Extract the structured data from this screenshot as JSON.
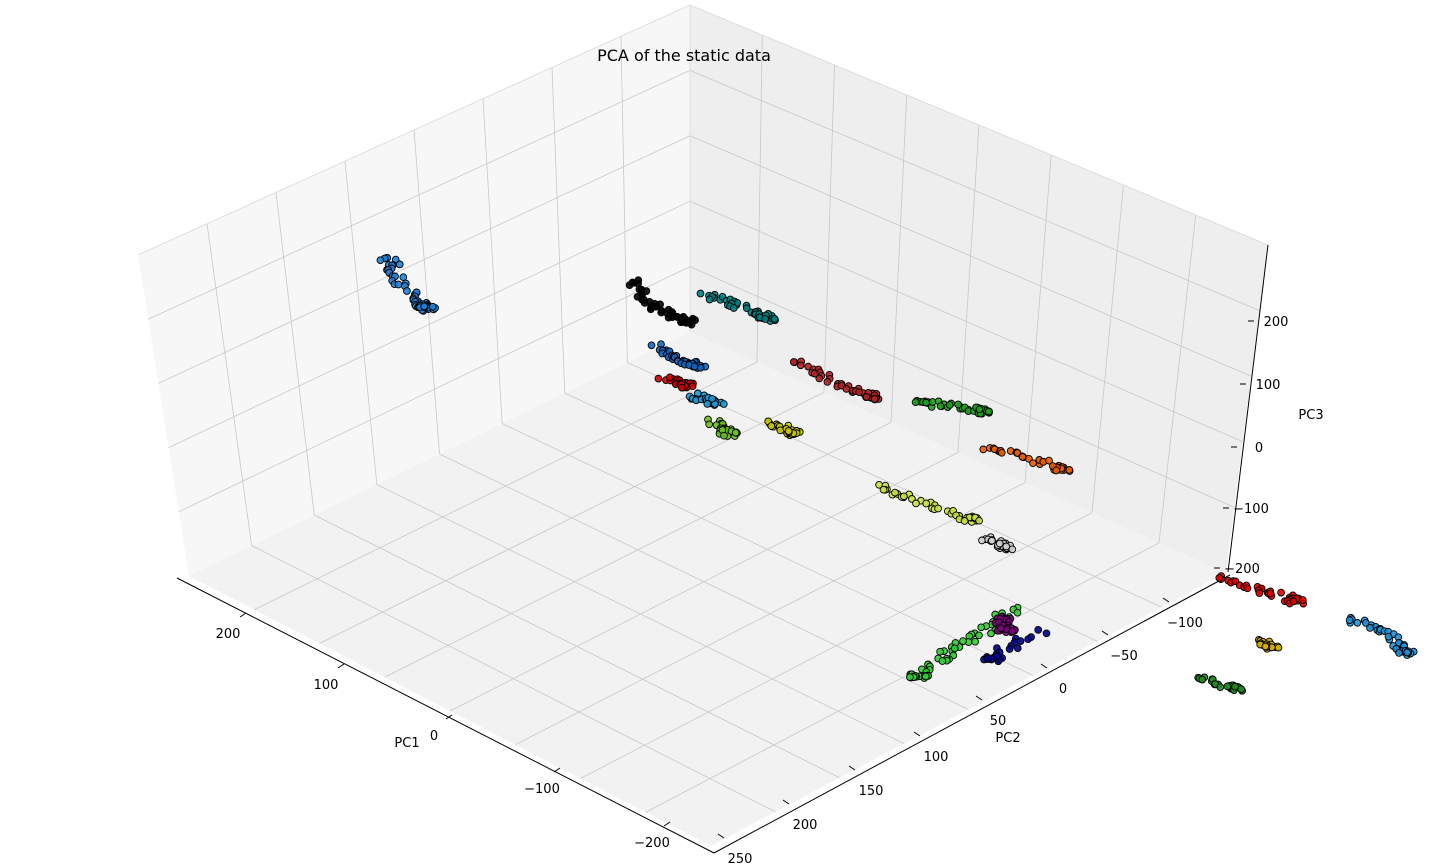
{
  "chart_data": {
    "type": "scatter",
    "projection": "3d",
    "title": "PCA of the static data",
    "xlabel": "PC1",
    "ylabel": "PC2",
    "zlabel": "PC3",
    "xlim": [
      -230,
      260
    ],
    "ylim": [
      -130,
      260
    ],
    "zlim": [
      -200,
      300
    ],
    "x_ticks": [
      "200",
      "100",
      "0",
      "−100",
      "−200"
    ],
    "y_ticks": [
      "250",
      "200",
      "150",
      "100",
      "50",
      "0",
      "−50",
      "−100"
    ],
    "z_ticks": [
      "200",
      "100",
      "0",
      "−100",
      "−200"
    ],
    "grid": true,
    "legend": "none",
    "marker_edge_color": "#000000",
    "series": [
      {
        "color": "#1e7fd6",
        "points": [
          [
            200,
            -80,
            230
          ],
          [
            205,
            -75,
            205
          ],
          [
            195,
            -70,
            180
          ],
          [
            192,
            -68,
            175
          ]
        ]
      },
      {
        "color": "#000000",
        "points": [
          [
            120,
            -20,
            260
          ],
          [
            115,
            -15,
            240
          ],
          [
            110,
            -10,
            230
          ],
          [
            105,
            -5,
            225
          ]
        ]
      },
      {
        "color": "#1565c0",
        "points": [
          [
            95,
            -20,
            200
          ],
          [
            90,
            -15,
            190
          ],
          [
            85,
            -10,
            185
          ]
        ]
      },
      {
        "color": "#d00000",
        "points": [
          [
            60,
            -30,
            185
          ],
          [
            55,
            -25,
            180
          ]
        ]
      },
      {
        "color": "#008080",
        "points": [
          [
            150,
            20,
            230
          ],
          [
            145,
            30,
            220
          ],
          [
            140,
            40,
            210
          ]
        ]
      },
      {
        "color": "#b22222",
        "points": [
          [
            90,
            30,
            190
          ],
          [
            80,
            40,
            175
          ],
          [
            70,
            50,
            165
          ]
        ]
      },
      {
        "color": "#6cc01e",
        "points": [
          [
            20,
            -30,
            160
          ],
          [
            15,
            -25,
            150
          ]
        ]
      },
      {
        "color": "#1fa01f",
        "points": [
          [
            230,
            130,
            60
          ],
          [
            225,
            140,
            58
          ],
          [
            215,
            150,
            60
          ]
        ]
      },
      {
        "color": "#e65c00",
        "points": [
          [
            210,
            150,
            20
          ],
          [
            200,
            160,
            15
          ],
          [
            190,
            170,
            10
          ]
        ]
      },
      {
        "color": "#1e9ad6",
        "points": [
          [
            160,
            20,
            100
          ],
          [
            155,
            25,
            98
          ]
        ]
      },
      {
        "color": "#c8c800",
        "points": [
          [
            140,
            40,
            85
          ],
          [
            130,
            45,
            80
          ]
        ]
      },
      {
        "color": "#c8e040",
        "points": [
          [
            90,
            60,
            45
          ],
          [
            70,
            70,
            40
          ],
          [
            50,
            80,
            35
          ]
        ]
      },
      {
        "color": "#d3d3d3",
        "points": [
          [
            60,
            90,
            5
          ],
          [
            55,
            95,
            0
          ]
        ]
      },
      {
        "color": "#32cd32",
        "points": [
          [
            -40,
            60,
            -15
          ],
          [
            -60,
            40,
            -30
          ],
          [
            -80,
            20,
            -45
          ],
          [
            -100,
            0,
            -60
          ]
        ]
      },
      {
        "color": "#800080",
        "points": [
          [
            -30,
            60,
            -30
          ],
          [
            -45,
            55,
            -35
          ]
        ]
      },
      {
        "color": "#00008b",
        "points": [
          [
            -40,
            70,
            -40
          ],
          [
            -70,
            40,
            -55
          ]
        ]
      },
      {
        "color": "#e00000",
        "points": [
          [
            40,
            170,
            -20
          ],
          [
            30,
            180,
            -25
          ],
          [
            20,
            190,
            -30
          ]
        ]
      },
      {
        "color": "#d4b000",
        "points": [
          [
            -20,
            160,
            -55
          ],
          [
            -25,
            162,
            -58
          ]
        ]
      },
      {
        "color": "#228b22",
        "points": [
          [
            -60,
            120,
            -75
          ],
          [
            -70,
            130,
            -80
          ]
        ]
      },
      {
        "color": "#1e90d6",
        "points": [
          [
            70,
            230,
            -80
          ],
          [
            60,
            240,
            -90
          ],
          [
            55,
            245,
            -110
          ]
        ]
      }
    ]
  }
}
